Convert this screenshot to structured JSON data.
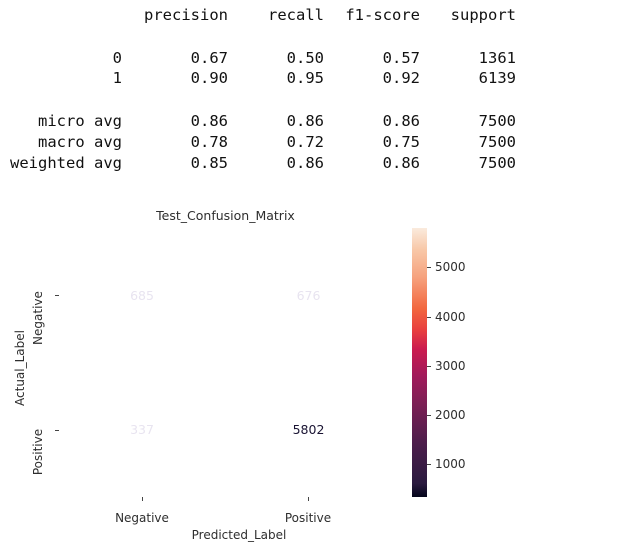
{
  "report": {
    "headers": [
      "precision",
      "recall",
      "f1-score",
      "support"
    ],
    "rows": [
      {
        "label": "0",
        "precision": "0.67",
        "recall": "0.50",
        "f1": "0.57",
        "support": "1361"
      },
      {
        "label": "1",
        "precision": "0.90",
        "recall": "0.95",
        "f1": "0.92",
        "support": "6139"
      },
      {
        "label": "micro avg",
        "precision": "0.86",
        "recall": "0.86",
        "f1": "0.86",
        "support": "7500"
      },
      {
        "label": "macro avg",
        "precision": "0.78",
        "recall": "0.72",
        "f1": "0.75",
        "support": "7500"
      },
      {
        "label": "weighted avg",
        "precision": "0.85",
        "recall": "0.86",
        "f1": "0.86",
        "support": "7500"
      }
    ]
  },
  "chart_data": {
    "type": "heatmap",
    "title": "Test_Confusion_Matrix",
    "xlabel": "Predicted_Label",
    "ylabel": "Actual_Label",
    "x_categories": [
      "Negative",
      "Positive"
    ],
    "y_categories": [
      "Negative",
      "Positive"
    ],
    "values": [
      [
        685,
        676
      ],
      [
        337,
        5802
      ]
    ],
    "colorbar": {
      "ticks": [
        1000,
        2000,
        3000,
        4000,
        5000
      ],
      "range": [
        337,
        5802
      ],
      "colormap": "rocket"
    },
    "colors": {
      "low": "#2a1a3f",
      "high": "#fae9dd"
    }
  }
}
